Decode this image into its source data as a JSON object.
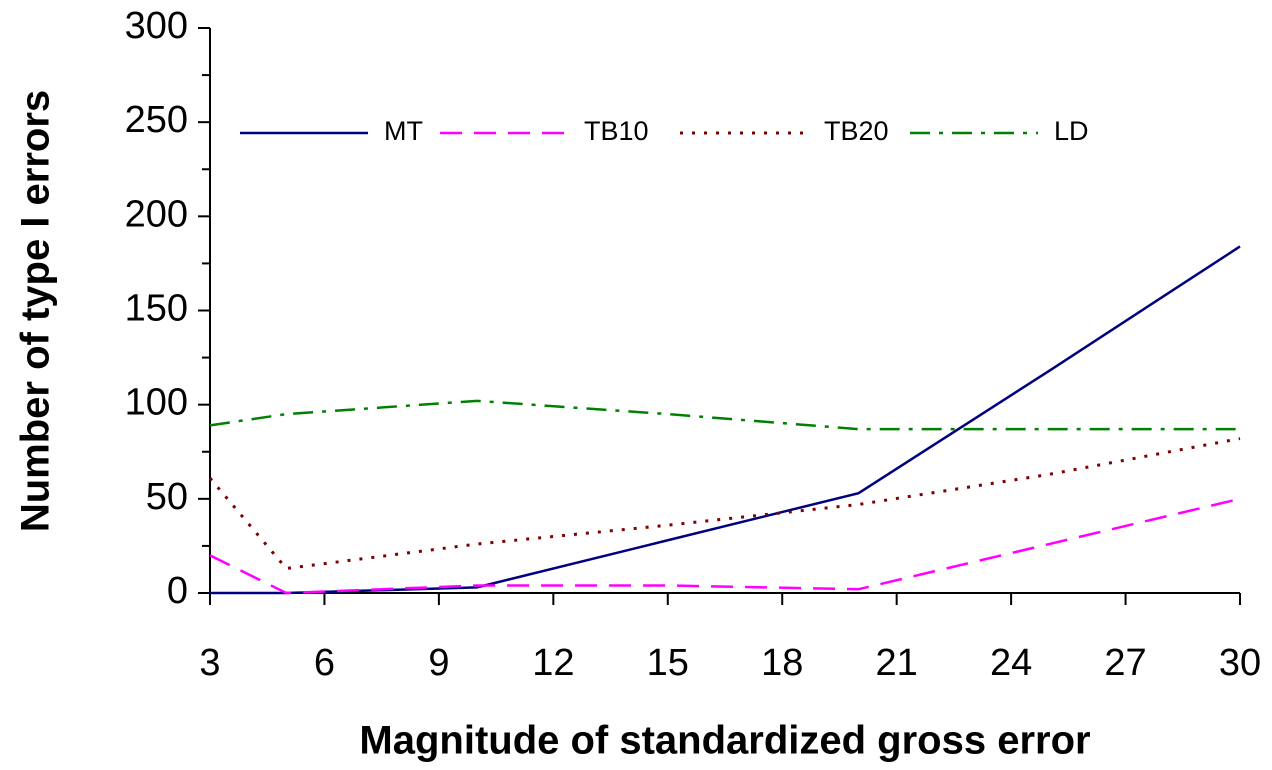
{
  "chart_data": {
    "type": "line",
    "x_label": "Magnitude of standardized gross error",
    "y_label": "Number of type I errors",
    "x": [
      3,
      5,
      10,
      15,
      20,
      25,
      30
    ],
    "series": [
      {
        "name": "MT",
        "color": "#000080",
        "dash": "solid",
        "values": [
          0,
          0,
          3,
          28,
          53,
          118,
          184
        ]
      },
      {
        "name": "TB10",
        "color": "#ff00ff",
        "dash": "dashed",
        "values": [
          20,
          0,
          4,
          4,
          2,
          26,
          50
        ]
      },
      {
        "name": "TB20",
        "color": "#800000",
        "dash": "dotted",
        "values": [
          61,
          13,
          26,
          36,
          47,
          63,
          82
        ]
      },
      {
        "name": "LD",
        "color": "#008000",
        "dash": "dashdot",
        "values": [
          89,
          95,
          102,
          95,
          87,
          87,
          87
        ]
      }
    ],
    "xlim": [
      3,
      30
    ],
    "xticks": [
      3,
      6,
      9,
      12,
      15,
      18,
      21,
      24,
      27,
      30
    ],
    "ylim": [
      0,
      300
    ],
    "yticks": [
      0,
      50,
      100,
      150,
      200,
      250,
      300
    ],
    "yminorticks": [
      25,
      75,
      125,
      175,
      225,
      275
    ],
    "grid": false,
    "legend": "top"
  }
}
